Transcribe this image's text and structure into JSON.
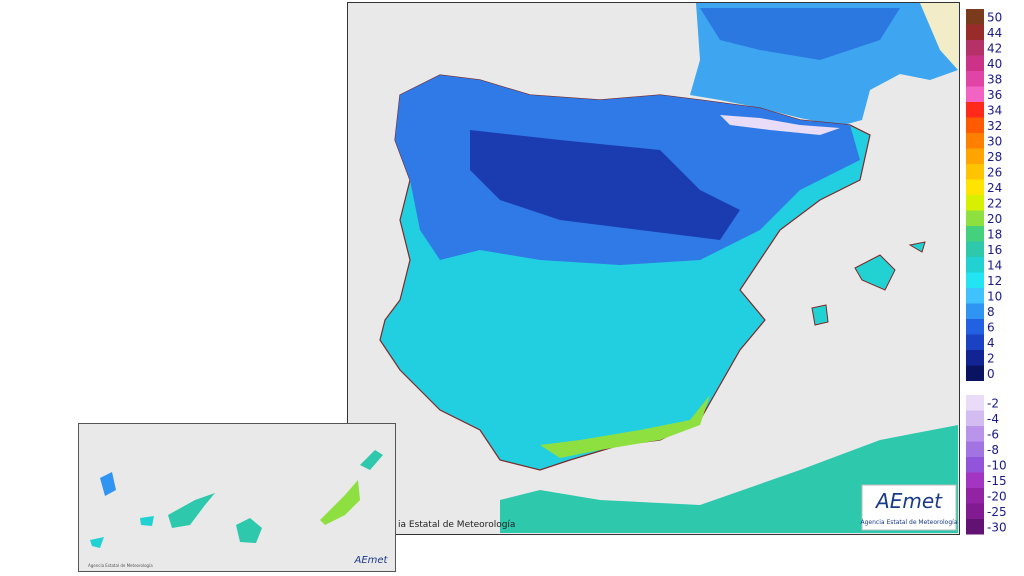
{
  "legend": {
    "items": [
      {
        "label": "50",
        "color": "#7a3a1c"
      },
      {
        "label": "44",
        "color": "#9a2b2b"
      },
      {
        "label": "42",
        "color": "#b43268"
      },
      {
        "label": "40",
        "color": "#cc3388"
      },
      {
        "label": "38",
        "color": "#e044a4"
      },
      {
        "label": "36",
        "color": "#f264c4"
      },
      {
        "label": "34",
        "color": "#ff2a1a"
      },
      {
        "label": "32",
        "color": "#ff5a00"
      },
      {
        "label": "30",
        "color": "#ff8000"
      },
      {
        "label": "28",
        "color": "#ffa400"
      },
      {
        "label": "26",
        "color": "#ffc400"
      },
      {
        "label": "24",
        "color": "#ffe400"
      },
      {
        "label": "22",
        "color": "#d6f000"
      },
      {
        "label": "20",
        "color": "#8ee040"
      },
      {
        "label": "18",
        "color": "#44d07c"
      },
      {
        "label": "16",
        "color": "#2ec8ac"
      },
      {
        "label": "14",
        "color": "#22d2d2"
      },
      {
        "label": "12",
        "color": "#22e4f2"
      },
      {
        "label": "10",
        "color": "#40c2ff"
      },
      {
        "label": "8",
        "color": "#3094f2"
      },
      {
        "label": "6",
        "color": "#2262e2"
      },
      {
        "label": "4",
        "color": "#1a42c2"
      },
      {
        "label": "2",
        "color": "#122494"
      },
      {
        "label": "0",
        "color": "#0a1262"
      },
      {
        "label": "-2",
        "color": "#eadcf8"
      },
      {
        "label": "-4",
        "color": "#d2bcf0"
      },
      {
        "label": "-6",
        "color": "#ba94ea"
      },
      {
        "label": "-8",
        "color": "#a274e2"
      },
      {
        "label": "-10",
        "color": "#9254da"
      },
      {
        "label": "-15",
        "color": "#a434c2"
      },
      {
        "label": "-20",
        "color": "#9224a4"
      },
      {
        "label": "-25",
        "color": "#821a92"
      },
      {
        "label": "-30",
        "color": "#621272"
      }
    ]
  },
  "main_map": {
    "credit": "ia Estatal de Meteorología",
    "logo": "AEmet",
    "logo_subtitle": "Agencia Estatal de Meteorología"
  },
  "inset_map": {
    "credit": "Agencia Estatal de Meteorología",
    "logo": "AEmet"
  }
}
